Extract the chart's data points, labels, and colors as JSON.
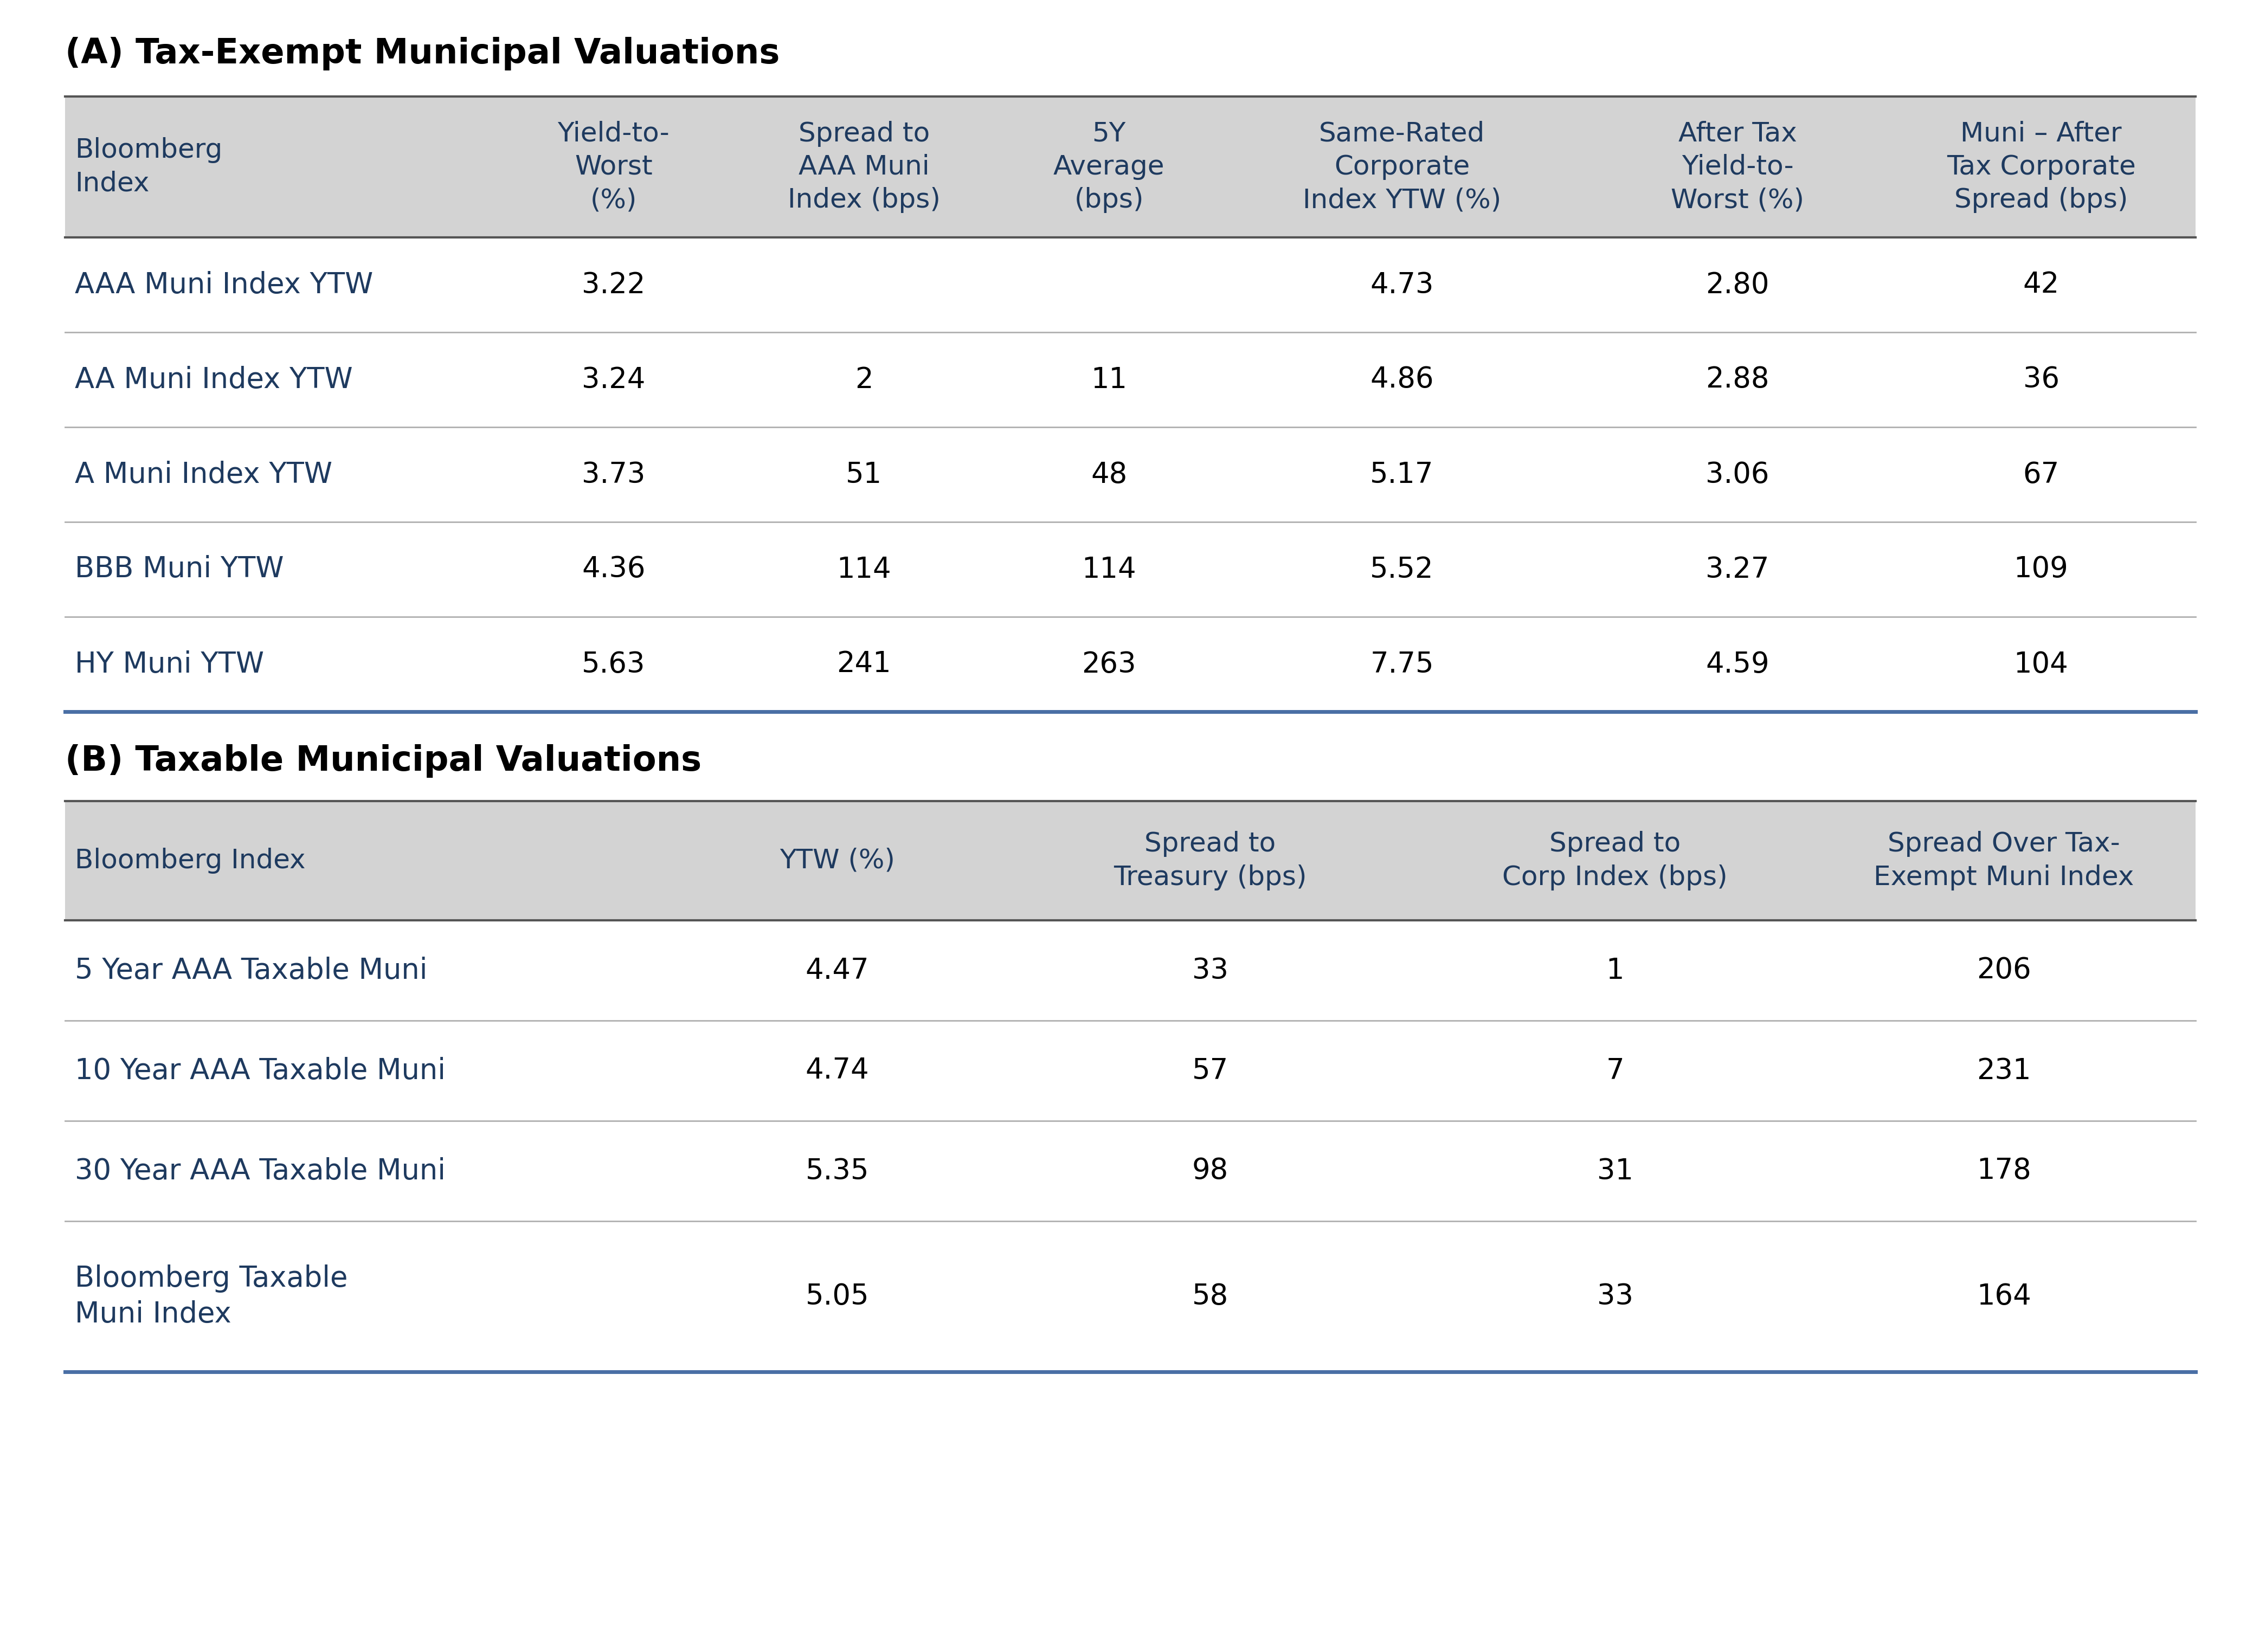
{
  "title_a": "(A) Tax-Exempt Municipal Valuations",
  "title_b": "(B) Taxable Municipal Valuations",
  "title_color": "#000000",
  "header_color": "#1e3a5f",
  "data_color_col1": "#1e3a5f",
  "data_color_rest": "#000000",
  "header_bg": "#d3d3d3",
  "separator_color": "#b0b0b0",
  "bottom_border_color": "#4a6fa5",
  "table_a_headers": [
    "Bloomberg\nIndex",
    "Yield-to-\nWorst\n(%)",
    "Spread to\nAAA Muni\nIndex (bps)",
    "5Y\nAverage\n(bps)",
    "Same-Rated\nCorporate\nIndex YTW (%)",
    "After Tax\nYield-to-\nWorst (%)",
    "Muni – After\nTax Corporate\nSpread (bps)"
  ],
  "table_a_rows": [
    [
      "AAA Muni Index YTW",
      "3.22",
      "",
      "",
      "4.73",
      "2.80",
      "42"
    ],
    [
      "AA Muni Index YTW",
      "3.24",
      "2",
      "11",
      "4.86",
      "2.88",
      "36"
    ],
    [
      "A Muni Index YTW",
      "3.73",
      "51",
      "48",
      "5.17",
      "3.06",
      "67"
    ],
    [
      "BBB Muni YTW",
      "4.36",
      "114",
      "114",
      "5.52",
      "3.27",
      "109"
    ],
    [
      "HY Muni YTW",
      "5.63",
      "241",
      "263",
      "7.75",
      "4.59",
      "104"
    ]
  ],
  "table_b_headers": [
    "Bloomberg Index",
    "YTW (%)",
    "Spread to\nTreasury (bps)",
    "Spread to\nCorp Index (bps)",
    "Spread Over Tax-\nExempt Muni Index"
  ],
  "table_b_rows": [
    [
      "5 Year AAA Taxable Muni",
      "4.47",
      "33",
      "1",
      "206"
    ],
    [
      "10 Year AAA Taxable Muni",
      "4.74",
      "57",
      "7",
      "231"
    ],
    [
      "30 Year AAA Taxable Muni",
      "5.35",
      "98",
      "31",
      "178"
    ],
    [
      "Bloomberg Taxable\nMuni Index",
      "5.05",
      "58",
      "33",
      "164"
    ]
  ],
  "bg_color": "#ffffff",
  "font_family": "DejaVu Sans",
  "title_fontsize": 46,
  "header_fontsize": 36,
  "data_fontsize": 38
}
